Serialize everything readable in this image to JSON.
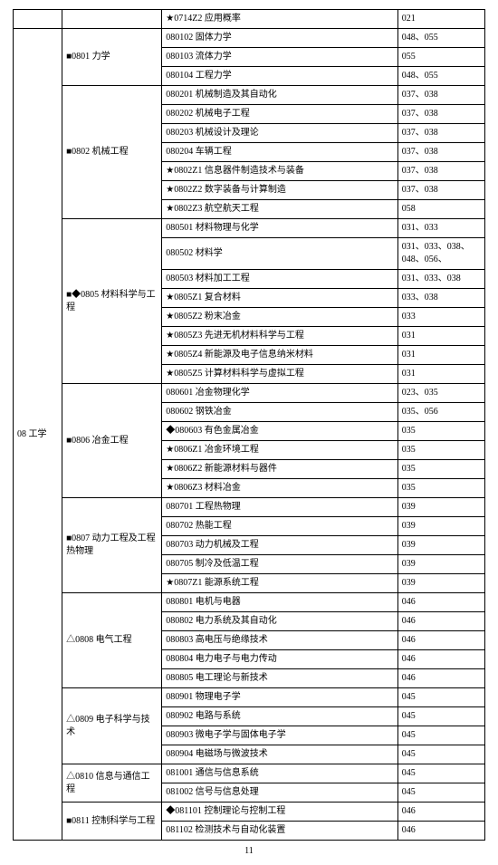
{
  "page_number": "11",
  "category": "08 工学",
  "first_row": {
    "s1": "★0714Z2 应用概率",
    "c1": "021"
  },
  "groups": [
    {
      "label": "■0801 力学",
      "rows": [
        {
          "s": "080102 固体力学",
          "c": "048、055"
        },
        {
          "s": "080103 流体力学",
          "c": "055"
        },
        {
          "s": "080104 工程力学",
          "c": "048、055"
        }
      ]
    },
    {
      "label": "■0802 机械工程",
      "rows": [
        {
          "s": "080201 机械制造及其自动化",
          "c": "037、038"
        },
        {
          "s": "080202 机械电子工程",
          "c": "037、038"
        },
        {
          "s": "080203 机械设计及理论",
          "c": "037、038"
        },
        {
          "s": "080204 车辆工程",
          "c": "037、038"
        },
        {
          "s": "★0802Z1 信息器件制造技术与装备",
          "c": "037、038"
        },
        {
          "s": "★0802Z2 数字装备与计算制造",
          "c": "037、038"
        },
        {
          "s": "★0802Z3 航空航天工程",
          "c": "058"
        }
      ]
    },
    {
      "label": "■◆0805 材料科学与工程",
      "rows": [
        {
          "s": "080501 材料物理与化学",
          "c": "031、033"
        },
        {
          "s": "080502 材料学",
          "c": "031、033、038、048、056、"
        },
        {
          "s": "080503 材料加工工程",
          "c": "031、033、038"
        },
        {
          "s": "★0805Z1 复合材料",
          "c": "033、038"
        },
        {
          "s": "★0805Z2 粉末冶金",
          "c": "033"
        },
        {
          "s": "★0805Z3 先进无机材料科学与工程",
          "c": "031"
        },
        {
          "s": "★0805Z4 新能源及电子信息纳米材料",
          "c": "031"
        },
        {
          "s": "★0805Z5 计算材料科学与虚拟工程",
          "c": "031"
        }
      ]
    },
    {
      "label": "■0806 冶金工程",
      "rows": [
        {
          "s": "080601 冶金物理化学",
          "c": "023、035"
        },
        {
          "s": "080602 钢铁冶金",
          "c": "035、056"
        },
        {
          "s": "◆080603 有色金属冶金",
          "c": "035"
        },
        {
          "s": "★0806Z1 冶金环境工程",
          "c": "035"
        },
        {
          "s": "★0806Z2 新能源材料与器件",
          "c": "035"
        },
        {
          "s": "★0806Z3 材料冶金",
          "c": "035"
        }
      ]
    },
    {
      "label": "■0807 动力工程及工程热物理",
      "rows": [
        {
          "s": "080701 工程热物理",
          "c": "039"
        },
        {
          "s": "080702 热能工程",
          "c": "039"
        },
        {
          "s": "080703 动力机械及工程",
          "c": "039"
        },
        {
          "s": "080705 制冷及低温工程",
          "c": "039"
        },
        {
          "s": "★0807Z1 能源系统工程",
          "c": "039"
        }
      ]
    },
    {
      "label": "△0808 电气工程",
      "rows": [
        {
          "s": "080801 电机与电器",
          "c": "046"
        },
        {
          "s": "080802 电力系统及其自动化",
          "c": "046"
        },
        {
          "s": "080803 高电压与绝缘技术",
          "c": "046"
        },
        {
          "s": "080804 电力电子与电力传动",
          "c": "046"
        },
        {
          "s": "080805 电工理论与新技术",
          "c": "046"
        }
      ]
    },
    {
      "label": "△0809 电子科学与技术",
      "rows": [
        {
          "s": "080901 物理电子学",
          "c": "045"
        },
        {
          "s": "080902 电路与系统",
          "c": "045"
        },
        {
          "s": "080903 微电子学与固体电子学",
          "c": "045"
        },
        {
          "s": "080904 电磁场与微波技术",
          "c": "045"
        }
      ]
    },
    {
      "label": "△0810 信息与通信工程",
      "rows": [
        {
          "s": "081001 通信与信息系统",
          "c": "045"
        },
        {
          "s": "081002 信号与信息处理",
          "c": "045"
        }
      ]
    },
    {
      "label": "■0811 控制科学与工程",
      "rows": [
        {
          "s": "◆081101 控制理论与控制工程",
          "c": "046"
        },
        {
          "s": "081102 检测技术与自动化装置",
          "c": "046"
        }
      ]
    }
  ]
}
